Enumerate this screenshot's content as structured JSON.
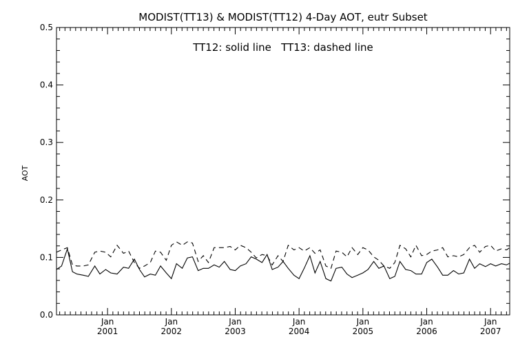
{
  "chart_data": {
    "type": "line",
    "title": "MODIST(TT13) & MODIST(TT12) 4-Day AOT, eutr Subset",
    "annotation": "TT12: solid line   TT13: dashed line",
    "xlabel": "",
    "ylabel": "AOT",
    "xlim": [
      2000.2,
      2007.3
    ],
    "ylim": [
      0.0,
      0.5
    ],
    "yticks": [
      "0.0",
      "0.1",
      "0.2",
      "0.3",
      "0.4",
      "0.5"
    ],
    "xtick_month": "Jan",
    "xticks": [
      {
        "pos": 2001,
        "label": "2001"
      },
      {
        "pos": 2002,
        "label": "2002"
      },
      {
        "pos": 2003,
        "label": "2003"
      },
      {
        "pos": 2004,
        "label": "2004"
      },
      {
        "pos": 2005,
        "label": "2005"
      },
      {
        "pos": 2006,
        "label": "2006"
      },
      {
        "pos": 2007,
        "label": "2007"
      }
    ],
    "grid": false,
    "series": [
      {
        "name": "TT12",
        "style": "solid",
        "x": [
          2000.2,
          2000.28,
          2000.37,
          2000.45,
          2000.52,
          2000.62,
          2000.7,
          2000.8,
          2000.88,
          2000.97,
          2001.05,
          2001.15,
          2001.25,
          2001.33,
          2001.42,
          2001.5,
          2001.58,
          2001.67,
          2001.75,
          2001.83,
          2001.92,
          2002.0,
          2002.08,
          2002.17,
          2002.25,
          2002.33,
          2002.42,
          2002.5,
          2002.58,
          2002.67,
          2002.75,
          2002.83,
          2002.92,
          2003.0,
          2003.08,
          2003.17,
          2003.25,
          2003.33,
          2003.42,
          2003.5,
          2003.58,
          2003.67,
          2003.75,
          2003.83,
          2003.92,
          2004.0,
          2004.08,
          2004.17,
          2004.25,
          2004.33,
          2004.42,
          2004.5,
          2004.58,
          2004.67,
          2004.75,
          2004.83,
          2004.92,
          2005.0,
          2005.08,
          2005.17,
          2005.25,
          2005.33,
          2005.42,
          2005.5,
          2005.58,
          2005.67,
          2005.75,
          2005.83,
          2005.92,
          2006.0,
          2006.08,
          2006.17,
          2006.25,
          2006.33,
          2006.42,
          2006.5,
          2006.58,
          2006.67,
          2006.75,
          2006.83,
          2006.92,
          2007.0,
          2007.08,
          2007.17,
          2007.25,
          2007.3
        ],
        "y": [
          0.079,
          0.085,
          0.115,
          0.075,
          0.071,
          0.069,
          0.067,
          0.085,
          0.071,
          0.079,
          0.073,
          0.071,
          0.083,
          0.081,
          0.097,
          0.079,
          0.066,
          0.071,
          0.069,
          0.085,
          0.073,
          0.063,
          0.089,
          0.081,
          0.099,
          0.101,
          0.077,
          0.081,
          0.081,
          0.087,
          0.083,
          0.093,
          0.079,
          0.077,
          0.085,
          0.089,
          0.101,
          0.097,
          0.091,
          0.105,
          0.079,
          0.083,
          0.093,
          0.081,
          0.069,
          0.063,
          0.081,
          0.103,
          0.073,
          0.093,
          0.063,
          0.059,
          0.081,
          0.083,
          0.071,
          0.065,
          0.069,
          0.073,
          0.079,
          0.093,
          0.081,
          0.085,
          0.063,
          0.067,
          0.093,
          0.079,
          0.077,
          0.071,
          0.071,
          0.091,
          0.097,
          0.083,
          0.069,
          0.069,
          0.077,
          0.071,
          0.073,
          0.097,
          0.081,
          0.089,
          0.084,
          0.089,
          0.085,
          0.089,
          0.087,
          0.09
        ]
      },
      {
        "name": "TT13",
        "style": "dashed",
        "x": [
          2000.2,
          2000.28,
          2000.37,
          2000.45,
          2000.52,
          2000.62,
          2000.7,
          2000.8,
          2000.88,
          2000.97,
          2001.05,
          2001.15,
          2001.25,
          2001.33,
          2001.42,
          2001.5,
          2001.58,
          2001.67,
          2001.75,
          2001.83,
          2001.92,
          2002.0,
          2002.08,
          2002.17,
          2002.25,
          2002.33,
          2002.42,
          2002.5,
          2002.58,
          2002.67,
          2002.75,
          2002.83,
          2002.92,
          2003.0,
          2003.08,
          2003.17,
          2003.25,
          2003.33,
          2003.42,
          2003.5,
          2003.58,
          2003.67,
          2003.75,
          2003.83,
          2003.92,
          2004.0,
          2004.08,
          2004.17,
          2004.25,
          2004.33,
          2004.42,
          2004.5,
          2004.58,
          2004.67,
          2004.75,
          2004.83,
          2004.92,
          2005.0,
          2005.08,
          2005.17,
          2005.25,
          2005.33,
          2005.42,
          2005.5,
          2005.58,
          2005.67,
          2005.75,
          2005.83,
          2005.92,
          2006.0,
          2006.08,
          2006.17,
          2006.25,
          2006.33,
          2006.42,
          2006.5,
          2006.58,
          2006.67,
          2006.75,
          2006.83,
          2006.92,
          2007.0,
          2007.08,
          2007.17,
          2007.25,
          2007.3
        ],
        "y": [
          0.109,
          0.113,
          0.117,
          0.087,
          0.085,
          0.085,
          0.087,
          0.109,
          0.111,
          0.109,
          0.101,
          0.121,
          0.107,
          0.111,
          0.091,
          0.081,
          0.085,
          0.091,
          0.111,
          0.109,
          0.095,
          0.121,
          0.127,
          0.121,
          0.127,
          0.125,
          0.093,
          0.103,
          0.091,
          0.117,
          0.117,
          0.117,
          0.119,
          0.113,
          0.121,
          0.117,
          0.109,
          0.099,
          0.105,
          0.103,
          0.087,
          0.103,
          0.093,
          0.121,
          0.113,
          0.117,
          0.111,
          0.117,
          0.107,
          0.113,
          0.085,
          0.081,
          0.111,
          0.109,
          0.101,
          0.117,
          0.105,
          0.117,
          0.113,
          0.101,
          0.095,
          0.085,
          0.081,
          0.091,
          0.121,
          0.115,
          0.101,
          0.121,
          0.103,
          0.105,
          0.111,
          0.113,
          0.117,
          0.101,
          0.103,
          0.101,
          0.105,
          0.117,
          0.121,
          0.109,
          0.119,
          0.121,
          0.111,
          0.115,
          0.113,
          0.117
        ]
      }
    ]
  }
}
